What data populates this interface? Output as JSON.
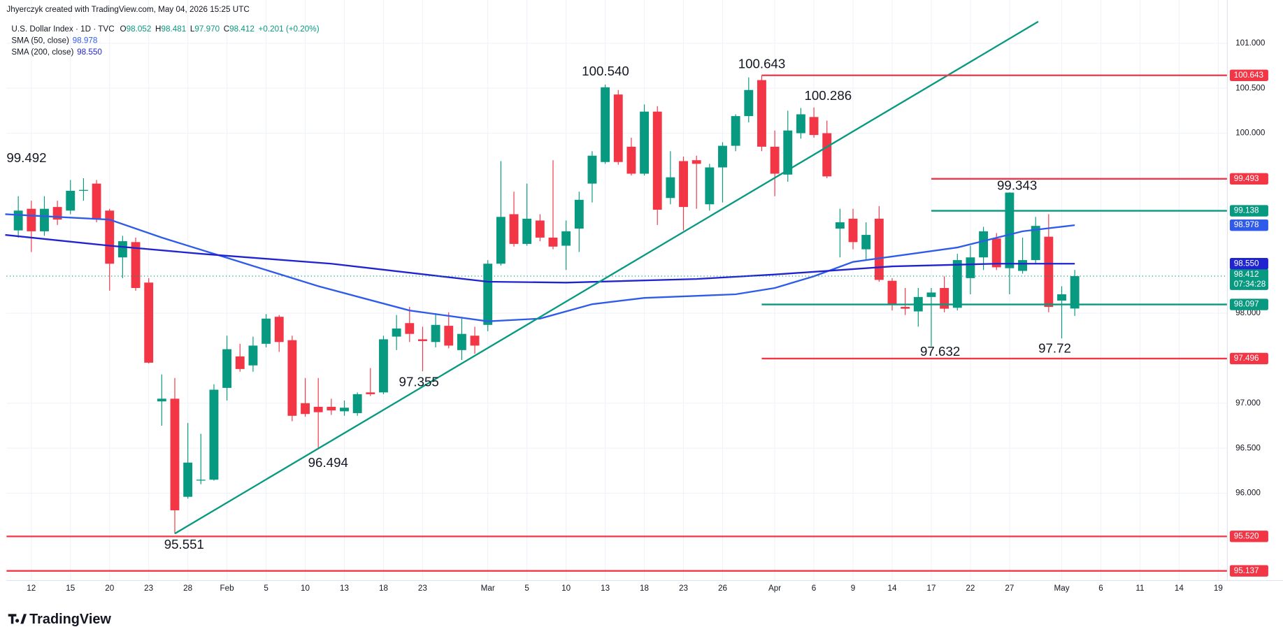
{
  "header": {
    "credit": "Jhyerczyk created with TradingView.com, May 04, 2026 15:25 UTC",
    "logo": "TradingView"
  },
  "chart_data": {
    "type": "candlestick",
    "title": "U.S. Dollar Index · 1D · TVC",
    "legend_keys": [
      "O",
      "H",
      "L",
      "C"
    ],
    "low_label": "97.970",
    "change": "+0.201 (+0.20%)",
    "countdown": "07:34:28",
    "up_color": "#089981",
    "down_color": "#f23645",
    "x": [
      0,
      1,
      2,
      3,
      4,
      5,
      6,
      7,
      8,
      9,
      10,
      11,
      12,
      13,
      14,
      15,
      16,
      17,
      18,
      19,
      20,
      21,
      22,
      23,
      24,
      25,
      26,
      27,
      28,
      29,
      30,
      31,
      32,
      33,
      34,
      35,
      36,
      37,
      38,
      39,
      40,
      41,
      42,
      43,
      44,
      45,
      46,
      47,
      48,
      49,
      50,
      51,
      52,
      53,
      54,
      55,
      56,
      57,
      58,
      59,
      60,
      61,
      62,
      63,
      64,
      65,
      66,
      67,
      68,
      69,
      70,
      71,
      72,
      73,
      74,
      75,
      76,
      77,
      78,
      79,
      80,
      81
    ],
    "open": [
      98.92,
      99.16,
      98.91,
      99.18,
      99.14,
      99.36,
      99.44,
      99.14,
      98.62,
      98.79,
      98.34,
      97.02,
      97.05,
      95.96,
      96.14,
      96.15,
      97.17,
      97.52,
      97.42,
      97.66,
      97.96,
      97.7,
      97.0,
      96.96,
      96.96,
      96.91,
      96.89,
      97.12,
      97.12,
      97.74,
      97.89,
      97.71,
      97.68,
      97.86,
      97.59,
      97.75,
      97.87,
      98.55,
      99.1,
      98.77,
      99.03,
      98.84,
      98.75,
      98.94,
      99.44,
      99.68,
      100.43,
      99.85,
      99.55,
      100.24,
      99.28,
      99.69,
      99.7,
      99.21,
      99.62,
      99.86,
      100.19,
      100.59,
      99.85,
      99.54,
      100.0,
      100.18,
      100.0,
      98.94,
      99.05,
      98.71,
      99.05,
      98.36,
      98.07,
      98.02,
      98.18,
      98.28,
      98.06,
      98.39,
      98.62,
      98.83,
      98.5,
      98.47,
      98.59,
      98.85,
      98.14,
      98.052
    ],
    "high": [
      99.3,
      99.25,
      99.3,
      99.25,
      99.48,
      99.5,
      99.48,
      99.16,
      98.86,
      98.84,
      98.39,
      97.32,
      97.28,
      96.78,
      96.66,
      97.21,
      97.75,
      97.66,
      97.74,
      97.99,
      97.98,
      97.75,
      97.28,
      97.28,
      97.05,
      97.03,
      97.12,
      97.39,
      97.75,
      97.98,
      98.07,
      97.85,
      98.0,
      98.01,
      97.94,
      97.85,
      98.59,
      99.69,
      99.35,
      99.44,
      99.1,
      99.7,
      99.03,
      99.35,
      99.8,
      100.54,
      100.48,
      99.95,
      100.32,
      100.3,
      99.8,
      99.74,
      99.75,
      99.66,
      99.9,
      100.21,
      100.62,
      100.643,
      100.03,
      100.25,
      100.28,
      100.286,
      100.14,
      99.16,
      99.16,
      99.01,
      99.19,
      98.39,
      98.28,
      98.28,
      98.28,
      98.41,
      98.66,
      98.75,
      98.96,
      98.89,
      99.343,
      98.84,
      99.07,
      99.1,
      98.3,
      98.481
    ],
    "low": [
      98.84,
      98.68,
      98.86,
      98.98,
      99.1,
      99.25,
      99.01,
      98.25,
      98.39,
      98.25,
      97.44,
      96.75,
      95.551,
      95.94,
      96.1,
      96.14,
      97.03,
      97.35,
      97.35,
      97.62,
      97.57,
      96.8,
      96.85,
      96.494,
      96.87,
      96.86,
      96.86,
      97.08,
      97.1,
      97.59,
      97.68,
      97.355,
      97.62,
      97.61,
      97.48,
      97.55,
      97.8,
      98.53,
      98.74,
      98.75,
      98.8,
      98.71,
      98.48,
      98.68,
      99.23,
      99.66,
      99.65,
      99.53,
      99.53,
      98.98,
      99.21,
      98.92,
      99.16,
      99.14,
      99.23,
      99.8,
      100.12,
      99.8,
      99.3,
      99.46,
      99.94,
      99.95,
      99.5,
      98.62,
      98.71,
      98.59,
      98.35,
      98.03,
      97.98,
      97.85,
      97.632,
      98.01,
      98.03,
      98.21,
      98.48,
      98.48,
      98.21,
      98.44,
      98.55,
      98.01,
      97.72,
      97.97
    ],
    "close": [
      99.14,
      98.91,
      99.16,
      99.04,
      99.36,
      99.37,
      99.04,
      98.55,
      98.8,
      98.28,
      97.45,
      97.05,
      95.81,
      96.34,
      96.15,
      97.15,
      97.6,
      97.38,
      97.64,
      97.94,
      97.68,
      96.86,
      96.88,
      96.9,
      96.92,
      96.95,
      97.1,
      97.1,
      97.71,
      97.83,
      97.77,
      97.69,
      97.87,
      97.64,
      97.77,
      97.64,
      98.55,
      99.07,
      98.77,
      99.05,
      98.84,
      98.74,
      98.91,
      99.26,
      99.75,
      100.51,
      99.68,
      99.55,
      100.24,
      99.15,
      99.51,
      99.18,
      99.66,
      99.62,
      99.86,
      100.19,
      100.48,
      99.85,
      99.55,
      100.03,
      100.21,
      99.98,
      99.52,
      99.01,
      98.79,
      98.87,
      98.37,
      98.1,
      98.05,
      98.18,
      98.23,
      98.05,
      98.59,
      98.62,
      98.91,
      98.51,
      99.34,
      98.59,
      98.97,
      98.07,
      98.21,
      98.412
    ],
    "overlays": [
      {
        "name": "SMA (50, close)",
        "color": "#2f5bea",
        "value_label": "98.978",
        "x": [
          -1,
          7,
          11,
          17,
          23,
          30,
          36,
          40,
          44,
          48,
          55,
          58,
          61,
          64,
          72,
          77,
          81
        ],
        "values": [
          99.1,
          99.04,
          98.84,
          98.57,
          98.3,
          98.03,
          97.91,
          97.94,
          98.1,
          98.17,
          98.21,
          98.28,
          98.41,
          98.57,
          98.73,
          98.91,
          98.978
        ]
      },
      {
        "name": "SMA (200, close)",
        "color": "#1f24d0",
        "value_label": "98.550",
        "x": [
          -1,
          7,
          14,
          24,
          36,
          42,
          52,
          58,
          67,
          75,
          81
        ],
        "values": [
          98.87,
          98.75,
          98.66,
          98.55,
          98.35,
          98.34,
          98.38,
          98.43,
          98.52,
          98.55,
          98.55
        ]
      }
    ],
    "levels": [
      {
        "value": 100.643,
        "label": "100.643",
        "color": "#f23645",
        "from": 57
      },
      {
        "value": 99.493,
        "label": "99.493",
        "color": "#f23645",
        "from": 70
      },
      {
        "value": 99.138,
        "label": "99.138",
        "color": "#089981",
        "from": 70
      },
      {
        "value": 98.097,
        "label": "98.097",
        "color": "#089981",
        "from": 57
      },
      {
        "value": 97.496,
        "label": "97.496",
        "color": "#f23645",
        "from": 57
      },
      {
        "value": 95.52,
        "label": "95.520",
        "color": "#f23645"
      },
      {
        "value": 95.137,
        "label": "95.137",
        "color": "#f23645"
      }
    ],
    "trendline": {
      "color": "#089981",
      "x": [
        12,
        78.2
      ],
      "values": [
        95.551,
        101.24
      ]
    },
    "annotations": [
      "99.492",
      "100.540",
      "100.643",
      "100.286",
      "99.343",
      "97.355",
      "96.494",
      "95.551",
      "97.632",
      "97.72"
    ],
    "xlim": [
      -0.9,
      92.7
    ],
    "ylim": [
      95.03,
      101.48
    ],
    "xticks": [
      {
        "value": 1,
        "label": "12"
      },
      {
        "value": 4,
        "label": "15"
      },
      {
        "value": 7,
        "label": "20"
      },
      {
        "value": 10,
        "label": "23"
      },
      {
        "value": 13,
        "label": "28"
      },
      {
        "value": 16,
        "label": "Feb"
      },
      {
        "value": 19,
        "label": "5"
      },
      {
        "value": 22,
        "label": "10"
      },
      {
        "value": 25,
        "label": "13"
      },
      {
        "value": 28,
        "label": "18"
      },
      {
        "value": 31,
        "label": "23"
      },
      {
        "value": 36,
        "label": "Mar"
      },
      {
        "value": 39,
        "label": "5"
      },
      {
        "value": 42,
        "label": "10"
      },
      {
        "value": 45,
        "label": "13"
      },
      {
        "value": 48,
        "label": "18"
      },
      {
        "value": 51,
        "label": "23"
      },
      {
        "value": 54,
        "label": "26"
      },
      {
        "value": 58,
        "label": "Apr"
      },
      {
        "value": 61,
        "label": "6"
      },
      {
        "value": 64,
        "label": "9"
      },
      {
        "value": 67,
        "label": "14"
      },
      {
        "value": 70,
        "label": "17"
      },
      {
        "value": 73,
        "label": "22"
      },
      {
        "value": 76,
        "label": "27"
      },
      {
        "value": 80,
        "label": "May"
      },
      {
        "value": 83,
        "label": "6"
      },
      {
        "value": 86,
        "label": "11"
      },
      {
        "value": 89,
        "label": "14"
      },
      {
        "value": 92,
        "label": "19"
      }
    ],
    "yticks": [
      {
        "value": 96,
        "label": "96.000"
      },
      {
        "value": 96.5,
        "label": "96.500"
      },
      {
        "value": 97,
        "label": "97.000"
      },
      {
        "value": 98,
        "label": "98.000"
      },
      {
        "value": 100,
        "label": "100.000"
      },
      {
        "value": 100.5,
        "label": "100.500"
      },
      {
        "value": 101,
        "label": "101.000"
      }
    ],
    "grid": true
  }
}
